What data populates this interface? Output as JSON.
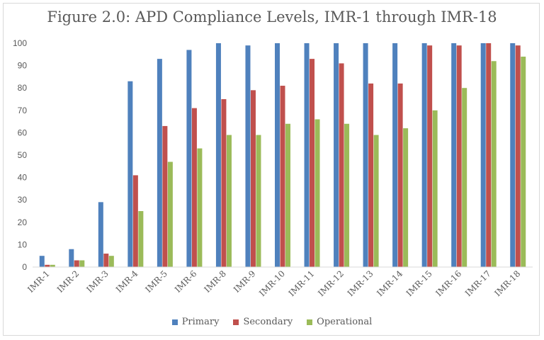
{
  "chart_data": {
    "type": "bar",
    "title": "Figure 2.0: APD Compliance Levels, IMR-1 through IMR-18",
    "xlabel": "",
    "ylabel": "",
    "ylim": [
      0,
      100
    ],
    "yticks": [
      0,
      10,
      20,
      30,
      40,
      50,
      60,
      70,
      80,
      90,
      100
    ],
    "grid": "none",
    "legend_position": "bottom",
    "categories": [
      "IMR-1",
      "IMR-2",
      "IMR-3",
      "IMR-4",
      "IMR-5",
      "IMR-6",
      "IMR-8",
      "IMR-9",
      "IMR-10",
      "IMR-11",
      "IMR-12",
      "IMR-13",
      "IMR-14",
      "IMR-15",
      "IMR-16",
      "IMR-17",
      "IMR-18"
    ],
    "series": [
      {
        "name": "Primary",
        "color": "#4f81bd",
        "values": [
          5,
          8,
          29,
          83,
          93,
          97,
          100,
          99,
          100,
          100,
          100,
          100,
          100,
          100,
          100,
          100,
          100
        ]
      },
      {
        "name": "Secondary",
        "color": "#c0504d",
        "values": [
          1,
          3,
          6,
          41,
          63,
          71,
          75,
          79,
          81,
          93,
          91,
          82,
          82,
          99,
          99,
          100,
          99
        ]
      },
      {
        "name": "Operational",
        "color": "#9bbb59",
        "values": [
          1,
          3,
          5,
          25,
          47,
          53,
          59,
          59,
          64,
          66,
          64,
          59,
          62,
          70,
          80,
          92,
          94
        ]
      }
    ]
  }
}
